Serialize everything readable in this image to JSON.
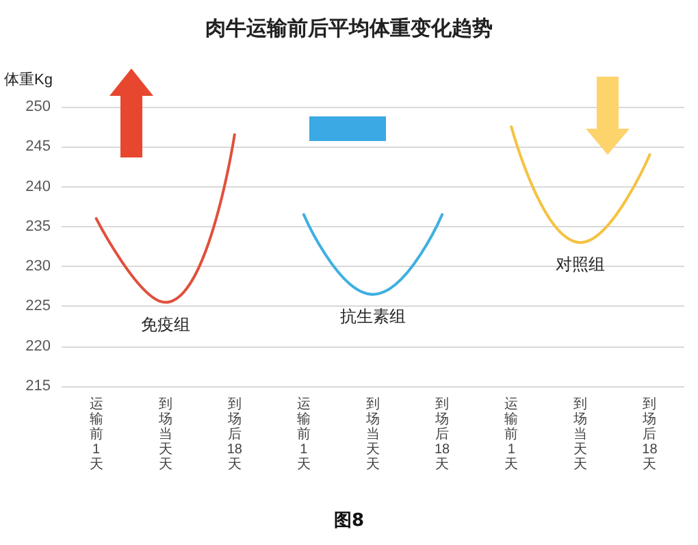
{
  "chart_data": {
    "type": "line",
    "title": "肉牛运输前后平均体重变化趋势",
    "ylabel": "体重Kg",
    "annotations": [
      "图8"
    ],
    "categories": [
      "运输前1天",
      "到场当天天",
      "到场后18天",
      "运输前1天",
      "到场当天天",
      "到场后18天",
      "运输前1天",
      "到场当天天",
      "到场后18天"
    ],
    "series": [
      {
        "name": "免疫组",
        "color": "#e0503c",
        "values": [
          236,
          225.5,
          246.5,
          null,
          null,
          null,
          null,
          null,
          null
        ]
      },
      {
        "name": "抗生素组",
        "color": "#3fb0e0",
        "values": [
          null,
          null,
          null,
          236.5,
          226.5,
          236.5,
          null,
          null,
          null
        ]
      },
      {
        "name": "对照组",
        "color": "#f5c242",
        "values": [
          null,
          null,
          null,
          null,
          null,
          null,
          247.5,
          233,
          244
        ]
      }
    ],
    "ylim": [
      215,
      250
    ],
    "yticks": [
      215,
      220,
      225,
      230,
      235,
      240,
      245,
      250
    ],
    "grid": "y",
    "line_style": "solid"
  }
}
